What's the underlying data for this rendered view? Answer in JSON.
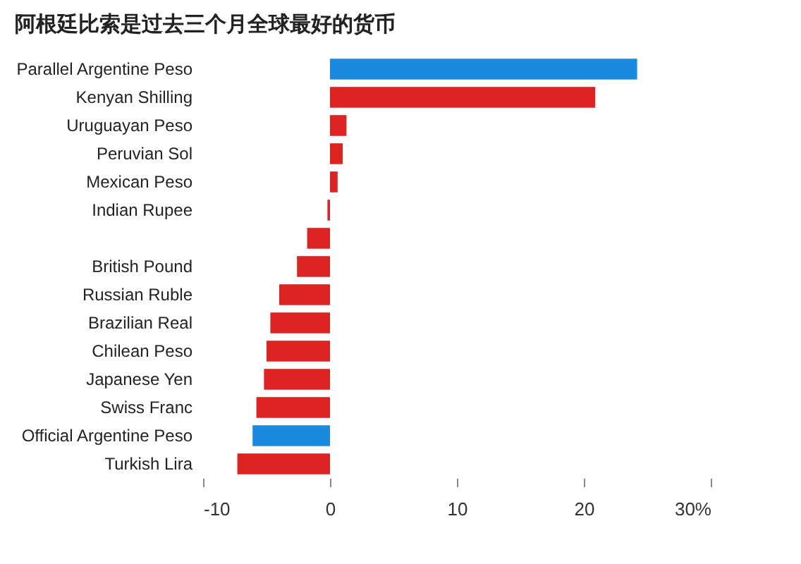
{
  "chart_data": {
    "type": "bar",
    "orientation": "horizontal",
    "title": "阿根廷比索是过去三个月全球最好的货币",
    "categories": [
      "Parallel Argentine Peso",
      "Kenyan Shilling",
      "Uruguayan Peso",
      "Peruvian Sol",
      "Mexican Peso",
      "Indian Rupee",
      null,
      "British Pound",
      "Russian Ruble",
      "Brazilian Real",
      "Chilean Peso",
      "Japanese Yen",
      "Swiss Franc",
      "Official Argentine Peso",
      "Turkish Lira"
    ],
    "values": [
      24.2,
      20.9,
      1.3,
      1.0,
      0.6,
      -0.2,
      -1.8,
      -2.6,
      -4.0,
      -4.7,
      -5.0,
      -5.2,
      -5.8,
      -6.1,
      -7.3
    ],
    "colors": [
      "#1a8ae0",
      "#dd2222",
      "#dd2222",
      "#dd2222",
      "#dd2222",
      "#dd2222",
      "#dd2222",
      "#dd2222",
      "#dd2222",
      "#dd2222",
      "#dd2222",
      "#dd2222",
      "#dd2222",
      "#1a8ae0",
      "#dd2222"
    ],
    "xlim": [
      -10,
      30
    ],
    "xticks": [
      -10,
      0,
      10,
      20,
      {
        "value": 30,
        "label": "30%"
      }
    ],
    "grid": false
  }
}
